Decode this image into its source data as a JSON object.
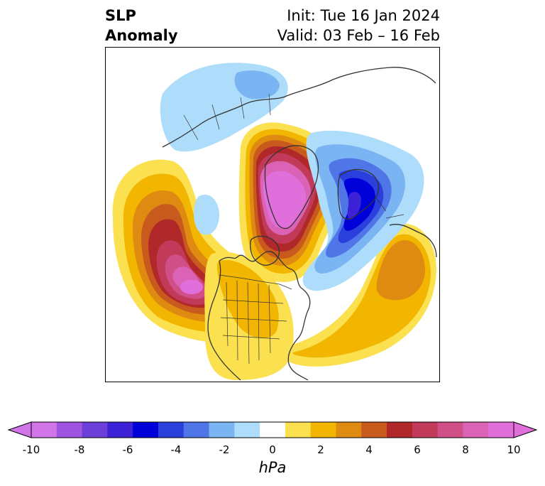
{
  "title": {
    "left_line1": "SLP",
    "left_line2": "Anomaly",
    "right_line1": "Init: Tue 16 Jan 2024",
    "right_line2": "Valid: 03 Feb – 16 Feb"
  },
  "colorbar": {
    "unit": "hPa",
    "tick_labels": [
      "-10",
      "-8",
      "-6",
      "-4",
      "-2",
      "0",
      "2",
      "4",
      "6",
      "8",
      "10"
    ],
    "range": [
      -10,
      10
    ],
    "extend": "both",
    "colors": [
      "#d175e8",
      "#9f55e0",
      "#6d3fd9",
      "#3b22d6",
      "#0000d8",
      "#2a3fdc",
      "#4f75e6",
      "#7bb4f3",
      "#aedcfb",
      "#ffffff",
      "#fbe04f",
      "#f2b500",
      "#df8a10",
      "#c75a1c",
      "#b0282a",
      "#c13a5a",
      "#cf4f86",
      "#da63b5",
      "#e06fdc"
    ]
  },
  "map": {
    "projection": "north-polar stereographic",
    "features": [
      "coastlines",
      "country borders",
      "state/province borders"
    ]
  }
}
